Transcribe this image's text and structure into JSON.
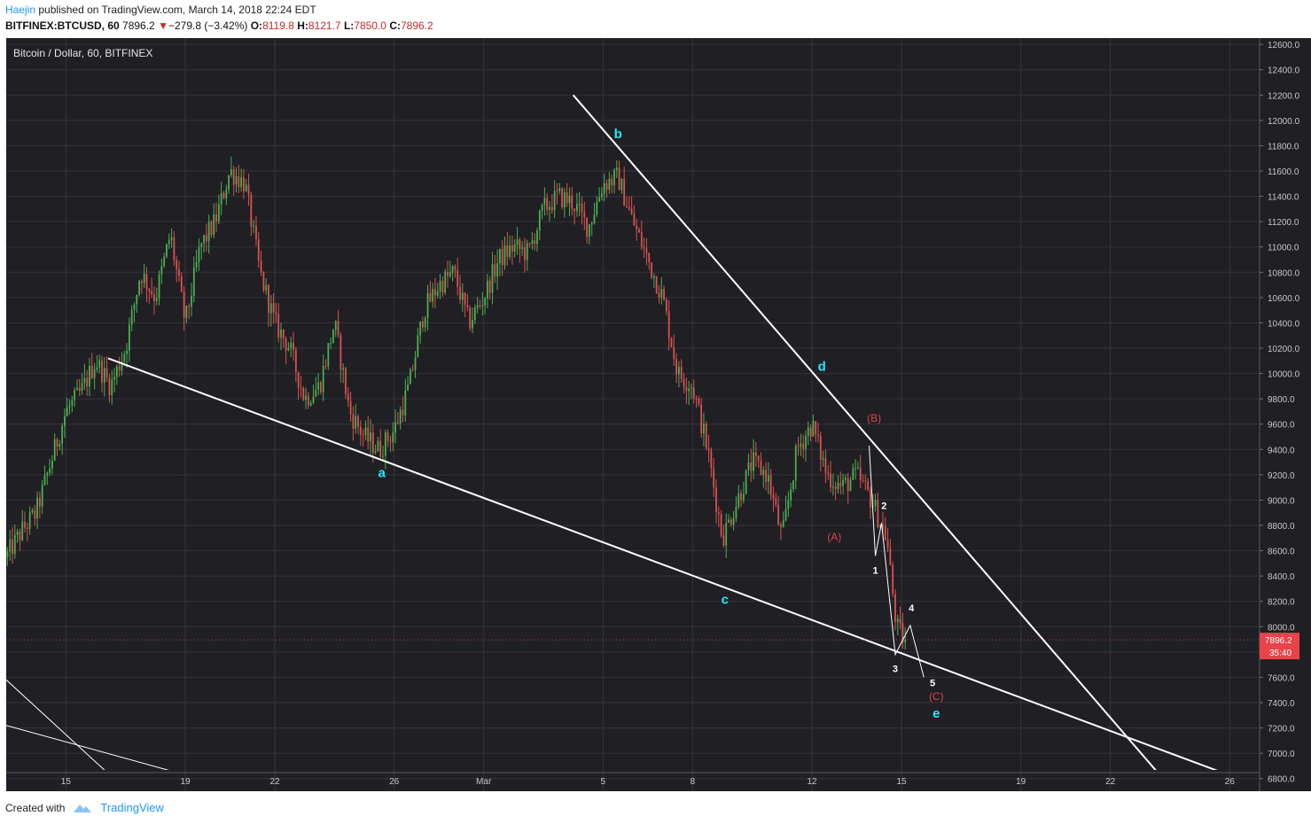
{
  "header": {
    "author": "Haejin",
    "published_text": "published on TradingView.com, March 14, 2018 22:24 EDT",
    "symbol": "BITFINEX:BTCUSD, 60",
    "last": "7896.2",
    "change_arrow": "▼",
    "change": "−279.8 (−3.42%)",
    "o_label": "O:",
    "o_value": "8119.8",
    "h_label": "H:",
    "h_value": "8121.7",
    "l_label": "L:",
    "l_value": "7850.0",
    "c_label": "C:",
    "c_value": "7896.2"
  },
  "footer": {
    "created_with": "Created with",
    "brand": "TradingView"
  },
  "colors": {
    "background": "#1f1f24",
    "grid": "#34343c",
    "up_candle": "#4caf50",
    "down_candle": "#d9534f",
    "trendline": "#ffffff",
    "wave_label_cyan": "#26e8ff",
    "wave_label_red": "#e0454d",
    "price_tag": "#e8434b"
  },
  "chart_data": {
    "type": "candlestick",
    "title": "Bitcoin / Dollar, 60, BITFINEX",
    "x_tick_labels": [
      "15",
      "19",
      "22",
      "26",
      "Mar",
      "5",
      "8",
      "12",
      "15",
      "19",
      "22",
      "26"
    ],
    "x_tick_dates": [
      "2018-02-15",
      "2018-02-19",
      "2018-02-22",
      "2018-02-26",
      "2018-03-01",
      "2018-03-05",
      "2018-03-08",
      "2018-03-12",
      "2018-03-15",
      "2018-03-19",
      "2018-03-22",
      "2018-03-26"
    ],
    "y_ticks": [
      6800,
      7000,
      7200,
      7400,
      7600,
      7800,
      8000,
      8200,
      8400,
      8600,
      8800,
      9000,
      9200,
      9400,
      9600,
      9800,
      10000,
      10200,
      10400,
      10600,
      10800,
      11000,
      11200,
      11400,
      11600,
      11800,
      12000,
      12200,
      12400,
      12600
    ],
    "y_tick_labels": [
      "6800.0",
      "7000.0",
      "7200.0",
      "7400.0",
      "7600.0",
      "7800.0",
      "8000.0",
      "8200.0",
      "8400.0",
      "8600.0",
      "8800.0",
      "9000.0",
      "9200.0",
      "9400.0",
      "9600.0",
      "9800.0",
      "10000.0",
      "10200.0",
      "10400.0",
      "10600.0",
      "10800.0",
      "11000.0",
      "11200.0",
      "11400.0",
      "11600.0",
      "11800.0",
      "12000.0",
      "12200.0",
      "12400.0",
      "12600.0"
    ],
    "ylim": [
      6700,
      12650
    ],
    "xlim": [
      "2018-02-13T00:00",
      "2018-03-27T00:00"
    ],
    "grid": true,
    "price_path": [
      [
        "2018-02-13T00:00",
        8550
      ],
      [
        "2018-02-13T12:00",
        8750
      ],
      [
        "2018-02-14T00:00",
        8900
      ],
      [
        "2018-02-14T12:00",
        9300
      ],
      [
        "2018-02-15T00:00",
        9700
      ],
      [
        "2018-02-15T12:00",
        9850
      ],
      [
        "2018-02-16T00:00",
        10100
      ],
      [
        "2018-02-16T12:00",
        9900
      ],
      [
        "2018-02-17T00:00",
        10200
      ],
      [
        "2018-02-17T12:00",
        10800
      ],
      [
        "2018-02-18T00:00",
        10600
      ],
      [
        "2018-02-18T12:00",
        11100
      ],
      [
        "2018-02-19T00:00",
        10400
      ],
      [
        "2018-02-19T12:00",
        11000
      ],
      [
        "2018-02-20T00:00",
        11200
      ],
      [
        "2018-02-20T12:00",
        11600
      ],
      [
        "2018-02-21T00:00",
        11500
      ],
      [
        "2018-02-21T12:00",
        10800
      ],
      [
        "2018-02-22T00:00",
        10400
      ],
      [
        "2018-02-22T12:00",
        10200
      ],
      [
        "2018-02-23T00:00",
        9800
      ],
      [
        "2018-02-23T12:00",
        9900
      ],
      [
        "2018-02-24T00:00",
        10400
      ],
      [
        "2018-02-24T12:00",
        9700
      ],
      [
        "2018-02-25T00:00",
        9500
      ],
      [
        "2018-02-25T12:00",
        9400
      ],
      [
        "2018-02-26T00:00",
        9550
      ],
      [
        "2018-02-26T12:00",
        9900
      ],
      [
        "2018-02-27T00:00",
        10500
      ],
      [
        "2018-02-27T12:00",
        10700
      ],
      [
        "2018-02-28T00:00",
        10800
      ],
      [
        "2018-02-28T12:00",
        10400
      ],
      [
        "2018-03-01T00:00",
        10600
      ],
      [
        "2018-03-01T12:00",
        10900
      ],
      [
        "2018-03-02T00:00",
        11000
      ],
      [
        "2018-03-02T12:00",
        10950
      ],
      [
        "2018-03-03T00:00",
        11300
      ],
      [
        "2018-03-03T12:00",
        11400
      ],
      [
        "2018-03-04T00:00",
        11350
      ],
      [
        "2018-03-04T12:00",
        11150
      ],
      [
        "2018-03-05T00:00",
        11500
      ],
      [
        "2018-03-05T12:00",
        11550
      ],
      [
        "2018-03-06T00:00",
        11200
      ],
      [
        "2018-03-06T12:00",
        10900
      ],
      [
        "2018-03-07T00:00",
        10600
      ],
      [
        "2018-03-07T12:00",
        10000
      ],
      [
        "2018-03-08T00:00",
        9900
      ],
      [
        "2018-03-08T12:00",
        9400
      ],
      [
        "2018-03-09T00:00",
        8700
      ],
      [
        "2018-03-09T12:00",
        9000
      ],
      [
        "2018-03-10T00:00",
        9300
      ],
      [
        "2018-03-10T12:00",
        9200
      ],
      [
        "2018-03-11T00:00",
        8700
      ],
      [
        "2018-03-11T12:00",
        9400
      ],
      [
        "2018-03-12T00:00",
        9600
      ],
      [
        "2018-03-12T12:00",
        9200
      ],
      [
        "2018-03-13T00:00",
        9100
      ],
      [
        "2018-03-13T12:00",
        9200
      ],
      [
        "2018-03-14T00:00",
        9000
      ],
      [
        "2018-03-14T12:00",
        8700
      ],
      [
        "2018-03-14T20:00",
        8000
      ],
      [
        "2018-03-15T02:00",
        7896
      ]
    ],
    "trendlines": [
      {
        "from": [
          "2018-02-16T10:00",
          10120
        ],
        "to": [
          "2018-03-25T20:00",
          6840
        ]
      },
      {
        "from": [
          "2018-03-04T00:00",
          12200
        ],
        "to": [
          "2018-03-23T20:00",
          6780
        ]
      },
      {
        "from": [
          "2018-02-13T00:00",
          7580
        ],
        "to": [
          "2018-02-16T20:00",
          6750
        ]
      },
      {
        "from": [
          "2018-02-13T00:00",
          7220
        ],
        "to": [
          "2018-02-18T20:00",
          6840
        ]
      }
    ],
    "wave_path": [
      [
        "2018-03-13T22:00",
        9430
      ],
      [
        "2018-03-14T03:00",
        8560
      ],
      [
        "2018-03-14T08:00",
        8820
      ],
      [
        "2018-03-14T19:00",
        7780
      ],
      [
        "2018-03-15T07:00",
        8010
      ],
      [
        "2018-03-15T18:00",
        7600
      ]
    ],
    "wave_labels": [
      {
        "text": "a",
        "color": "cyan",
        "at": [
          "2018-02-25T14:00",
          9180
        ]
      },
      {
        "text": "b",
        "color": "cyan",
        "at": [
          "2018-03-05T12:00",
          11860
        ]
      },
      {
        "text": "c",
        "color": "cyan",
        "at": [
          "2018-03-09T02:00",
          8180
        ]
      },
      {
        "text": "d",
        "color": "cyan",
        "at": [
          "2018-03-12T08:00",
          10020
        ]
      },
      {
        "text": "e",
        "color": "cyan",
        "at": [
          "2018-03-16T04:00",
          7280
        ]
      },
      {
        "text": "(A)",
        "color": "red",
        "at": [
          "2018-03-12T18:00",
          8680
        ]
      },
      {
        "text": "(B)",
        "color": "red",
        "at": [
          "2018-03-14T02:00",
          9620
        ]
      },
      {
        "text": "(C)",
        "color": "red",
        "at": [
          "2018-03-16T04:00",
          7420
        ]
      },
      {
        "text": "1",
        "color": "white",
        "at": [
          "2018-03-14T03:00",
          8420
        ]
      },
      {
        "text": "2",
        "color": "white",
        "at": [
          "2018-03-14T10:00",
          8930
        ]
      },
      {
        "text": "3",
        "color": "white",
        "at": [
          "2018-03-14T19:00",
          7640
        ]
      },
      {
        "text": "4",
        "color": "white",
        "at": [
          "2018-03-15T08:00",
          8120
        ]
      },
      {
        "text": "5",
        "color": "white",
        "at": [
          "2018-03-16T01:00",
          7530
        ]
      }
    ],
    "last_price": "7896.2",
    "countdown": "35:40"
  }
}
